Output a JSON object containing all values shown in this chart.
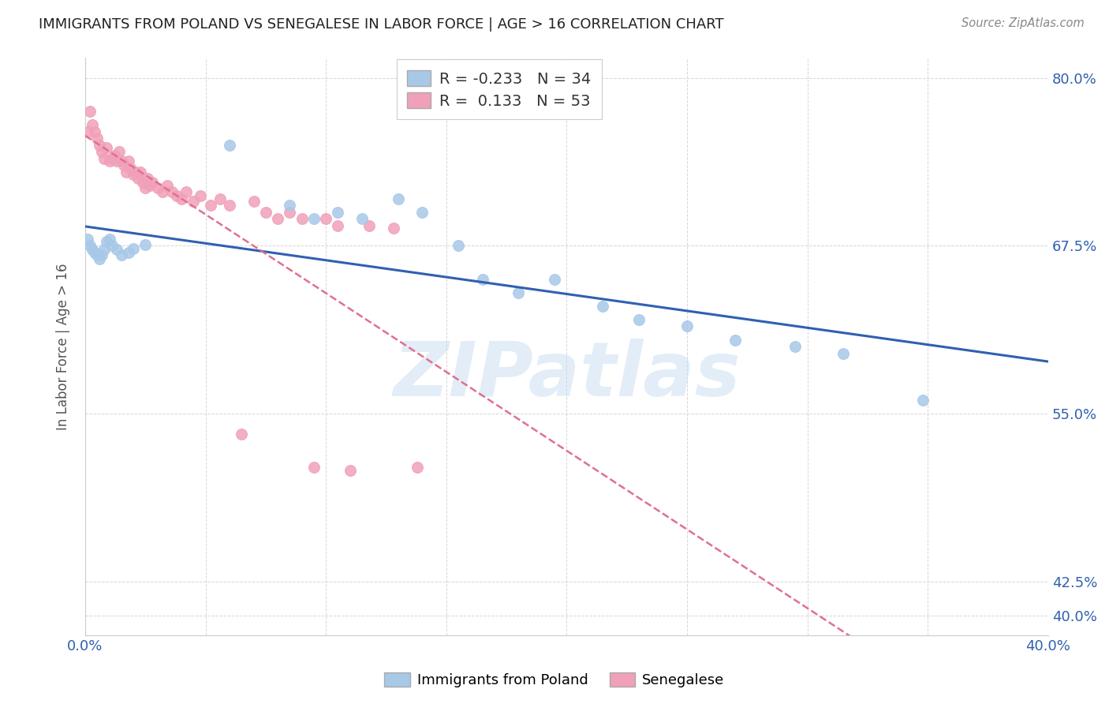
{
  "title": "IMMIGRANTS FROM POLAND VS SENEGALESE IN LABOR FORCE | AGE > 16 CORRELATION CHART",
  "source": "Source: ZipAtlas.com",
  "ylabel": "In Labor Force | Age > 16",
  "xlim": [
    0.0,
    0.4
  ],
  "ylim": [
    0.385,
    0.815
  ],
  "xtick_positions": [
    0.0,
    0.05,
    0.1,
    0.15,
    0.2,
    0.25,
    0.3,
    0.35,
    0.4
  ],
  "xticklabels_show": {
    "0.0": "0.0%",
    "0.40": "40.0%"
  },
  "ytick_positions": [
    0.4,
    0.425,
    0.55,
    0.675,
    0.8
  ],
  "yticklabels": [
    "40.0%",
    "42.5%",
    "55.0%",
    "67.5%",
    "80.0%"
  ],
  "poland_R": -0.233,
  "poland_N": 34,
  "senegal_R": 0.133,
  "senegal_N": 53,
  "poland_color": "#a8c8e8",
  "senegal_color": "#f0a0b8",
  "poland_line_color": "#3060b0",
  "senegal_line_color": "#e07090",
  "watermark": "ZIPatlas",
  "poland_x": [
    0.001,
    0.002,
    0.003,
    0.004,
    0.005,
    0.006,
    0.007,
    0.008,
    0.009,
    0.01,
    0.011,
    0.013,
    0.015,
    0.018,
    0.02,
    0.025,
    0.06,
    0.085,
    0.095,
    0.105,
    0.115,
    0.13,
    0.14,
    0.155,
    0.165,
    0.18,
    0.195,
    0.215,
    0.23,
    0.25,
    0.27,
    0.295,
    0.315,
    0.348
  ],
  "poland_y": [
    0.68,
    0.675,
    0.672,
    0.67,
    0.668,
    0.665,
    0.668,
    0.672,
    0.678,
    0.68,
    0.675,
    0.672,
    0.668,
    0.67,
    0.673,
    0.676,
    0.75,
    0.705,
    0.695,
    0.7,
    0.695,
    0.71,
    0.7,
    0.675,
    0.65,
    0.64,
    0.65,
    0.63,
    0.62,
    0.615,
    0.605,
    0.6,
    0.595,
    0.56
  ],
  "senegal_x": [
    0.001,
    0.002,
    0.003,
    0.004,
    0.005,
    0.006,
    0.007,
    0.008,
    0.009,
    0.01,
    0.011,
    0.012,
    0.013,
    0.014,
    0.015,
    0.016,
    0.017,
    0.018,
    0.019,
    0.02,
    0.021,
    0.022,
    0.023,
    0.024,
    0.025,
    0.026,
    0.027,
    0.028,
    0.03,
    0.032,
    0.034,
    0.036,
    0.038,
    0.04,
    0.042,
    0.045,
    0.048,
    0.052,
    0.056,
    0.06,
    0.065,
    0.07,
    0.075,
    0.08,
    0.085,
    0.09,
    0.095,
    0.1,
    0.105,
    0.11,
    0.118,
    0.128,
    0.138
  ],
  "senegal_y": [
    0.76,
    0.775,
    0.765,
    0.76,
    0.755,
    0.75,
    0.745,
    0.74,
    0.748,
    0.738,
    0.74,
    0.742,
    0.738,
    0.745,
    0.738,
    0.735,
    0.73,
    0.738,
    0.732,
    0.728,
    0.73,
    0.725,
    0.73,
    0.722,
    0.718,
    0.725,
    0.72,
    0.722,
    0.718,
    0.715,
    0.72,
    0.715,
    0.712,
    0.71,
    0.715,
    0.708,
    0.712,
    0.705,
    0.71,
    0.705,
    0.535,
    0.708,
    0.7,
    0.695,
    0.7,
    0.695,
    0.51,
    0.695,
    0.69,
    0.508,
    0.69,
    0.688,
    0.51
  ]
}
